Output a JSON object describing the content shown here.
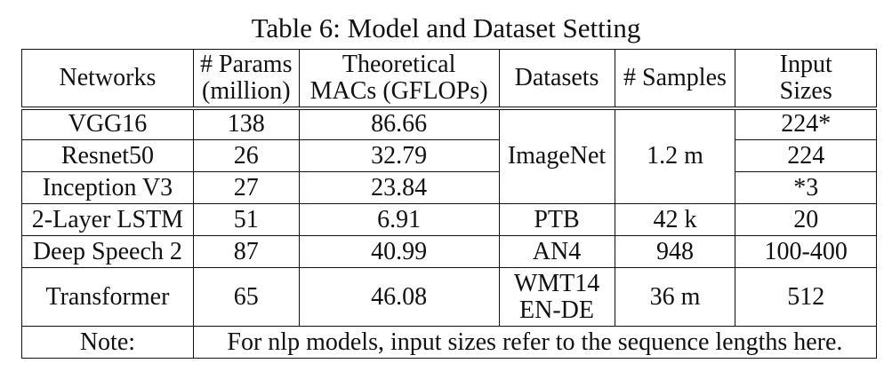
{
  "caption": "Table 6: Model and Dataset Setting",
  "headers": {
    "networks": "Networks",
    "params_line1": "# Params",
    "params_line2": "(million)",
    "macs_line1": "Theoretical",
    "macs_line2": "MACs (GFLOPs)",
    "datasets": "Datasets",
    "samples": "# Samples",
    "input_line1": "Input",
    "input_line2": "Sizes"
  },
  "rows": [
    {
      "network": "VGG16",
      "params": "138",
      "macs": "86.66",
      "input": "224*"
    },
    {
      "network": "Resnet50",
      "params": "26",
      "macs": "32.79",
      "input": "224"
    },
    {
      "network": "Inception V3",
      "params": "27",
      "macs": "23.84",
      "input": "*3"
    },
    {
      "network": "2-Layer LSTM",
      "params": "51",
      "macs": "6.91",
      "dataset": "PTB",
      "samples": "42 k",
      "input": "20"
    },
    {
      "network": "Deep Speech 2",
      "params": "87",
      "macs": "40.99",
      "dataset": "AN4",
      "samples": "948",
      "input": "100-400"
    },
    {
      "network": "Transformer",
      "params": "65",
      "macs": "46.08",
      "dataset_line1": "WMT14",
      "dataset_line2": "EN-DE",
      "samples": "36 m",
      "input": "512"
    }
  ],
  "imagenet_group": {
    "dataset": "ImageNet",
    "samples": "1.2 m"
  },
  "note": {
    "label": "Note:",
    "text": "For nlp models, input sizes refer to the sequence lengths here."
  }
}
